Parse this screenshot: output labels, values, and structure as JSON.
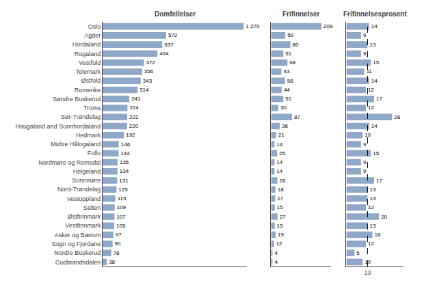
{
  "chart_data": [
    {
      "type": "bar",
      "orientation": "horizontal",
      "title": "Domfellelser",
      "categories": [
        "Oslo",
        "Agder",
        "Hordaland",
        "Rogaland",
        "Vestfold",
        "Telemark",
        "Østfold",
        "Romerike",
        "Søndre Buskerud",
        "Troms",
        "Sør-Trøndelag",
        "Haugaland and Sunnhordaland",
        "Hedmark",
        "Midtre Hålogaland",
        "Follo",
        "Nordmøre og Romsdal",
        "Helgeland",
        "Sunnmøre",
        "Nord-Trøndelag",
        "Vestoppland",
        "Salten",
        "Østfinnmark",
        "Vestfinnmark",
        "Asker og Bærum",
        "Sogn og Fjordane",
        "Nordre Buskerud",
        "Gudbrandsdalen"
      ],
      "values": [
        1270,
        572,
        537,
        494,
        372,
        356,
        343,
        314,
        241,
        224,
        222,
        220,
        192,
        146,
        144,
        135,
        134,
        131,
        125,
        115,
        109,
        107,
        105,
        97,
        90,
        78,
        38
      ],
      "value_labels": [
        "1 270",
        "572",
        "537",
        "494",
        "372",
        "356",
        "343",
        "314",
        "241",
        "224",
        "222",
        "220",
        "192",
        "146",
        "144",
        "135",
        "134",
        "131",
        "125",
        "115",
        "109",
        "107",
        "105",
        "97",
        "90",
        "78",
        "38"
      ],
      "color": "#8fa8c8",
      "xlim": [
        0,
        1300
      ],
      "xticks": [],
      "tick_labels": "y",
      "data_labels": true,
      "grid": false
    },
    {
      "type": "bar",
      "orientation": "horizontal",
      "title": "Frifinnelser",
      "categories": [
        "Oslo",
        "Agder",
        "Hordaland",
        "Rogaland",
        "Vestfold",
        "Telemark",
        "Østfold",
        "Romerike",
        "Søndre Buskerud",
        "Troms",
        "Sør-Trøndelag",
        "Haugaland and Sunnhordaland",
        "Hedmark",
        "Midtre Hålogaland",
        "Follo",
        "Nordmøre og Romsdal",
        "Helgeland",
        "Sunnmøre",
        "Nord-Trøndelag",
        "Vestoppland",
        "Salten",
        "Østfinnmark",
        "Vestfinnmark",
        "Asker og Bærum",
        "Sogn og Fjordane",
        "Nordre Buskerud",
        "Gudbrandsdalen"
      ],
      "values": [
        209,
        59,
        80,
        51,
        68,
        43,
        58,
        44,
        51,
        30,
        87,
        36,
        21,
        14,
        25,
        14,
        14,
        26,
        18,
        17,
        15,
        27,
        15,
        19,
        12,
        4,
        4
      ],
      "color": "#8fa8c8",
      "xlim": [
        0,
        250
      ],
      "xticks": [],
      "tick_labels": false,
      "data_labels": true,
      "grid": false
    },
    {
      "type": "bar",
      "orientation": "horizontal",
      "title": "Frifinnelsesprosent",
      "categories": [
        "Oslo",
        "Agder",
        "Hordaland",
        "Rogaland",
        "Vestfold",
        "Telemark",
        "Østfold",
        "Romerike",
        "Søndre Buskerud",
        "Troms",
        "Sør-Trøndelag",
        "Haugaland and Sunnhordaland",
        "Hedmark",
        "Midtre Hålogaland",
        "Follo",
        "Nordmøre og Romsdal",
        "Helgeland",
        "Sunnmøre",
        "Nord-Trøndelag",
        "Vestoppland",
        "Salten",
        "Østfinnmark",
        "Vestfinnmark",
        "Asker og Bærum",
        "Sogn og Fjordane",
        "Nordre Buskerud",
        "Gudbrandsdalen"
      ],
      "values": [
        14,
        9,
        13,
        9,
        15,
        11,
        14,
        12,
        17,
        12,
        28,
        14,
        10,
        9,
        15,
        9,
        9,
        17,
        13,
        13,
        12,
        20,
        13,
        16,
        12,
        5,
        10
      ],
      "color": "#8fa8c8",
      "xlim": [
        0,
        35
      ],
      "xticks": [
        13
      ],
      "tick_labels": "x",
      "data_labels": true,
      "grid": false,
      "avg_line": {
        "value": 13,
        "line_style": "dashed"
      }
    }
  ]
}
